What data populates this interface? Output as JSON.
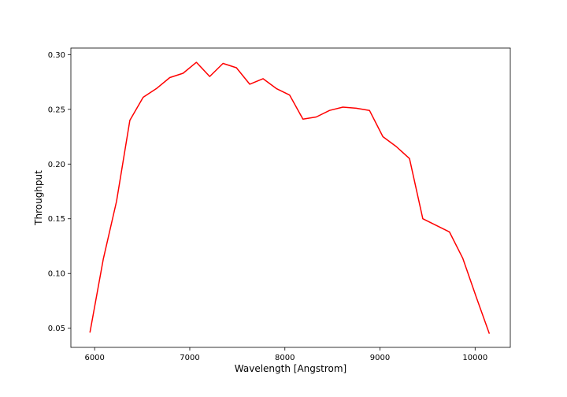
{
  "chart_data": {
    "type": "line",
    "title": "",
    "xlabel": "Wavelength [Angstrom]",
    "ylabel": "Throughput",
    "xlim": [
      5750,
      10370
    ],
    "ylim": [
      0.0325,
      0.306
    ],
    "xticks": [
      6000,
      7000,
      8000,
      9000,
      10000
    ],
    "yticks": [
      0.05,
      0.1,
      0.15,
      0.2,
      0.25,
      0.3
    ],
    "xtick_labels": [
      "6000",
      "7000",
      "8000",
      "9000",
      "10000"
    ],
    "ytick_labels": [
      "0.05",
      "0.10",
      "0.15",
      "0.20",
      "0.25",
      "0.30"
    ],
    "grid": false,
    "legend": "none",
    "series": [
      {
        "color": "#ff0000",
        "x": [
          5950,
          6090,
          6230,
          6370,
          6510,
          6650,
          6790,
          6930,
          7070,
          7210,
          7350,
          7490,
          7630,
          7770,
          7910,
          8050,
          8190,
          8330,
          8470,
          8610,
          8750,
          8890,
          9030,
          9170,
          9310,
          9450,
          9590,
          9730,
          9870,
          10010,
          10150
        ],
        "y": [
          0.046,
          0.113,
          0.166,
          0.24,
          0.261,
          0.269,
          0.279,
          0.283,
          0.293,
          0.28,
          0.292,
          0.288,
          0.273,
          0.278,
          0.269,
          0.263,
          0.241,
          0.243,
          0.249,
          0.252,
          0.251,
          0.249,
          0.225,
          0.216,
          0.205,
          0.15,
          0.144,
          0.138,
          0.114,
          0.079,
          0.045
        ]
      }
    ]
  }
}
